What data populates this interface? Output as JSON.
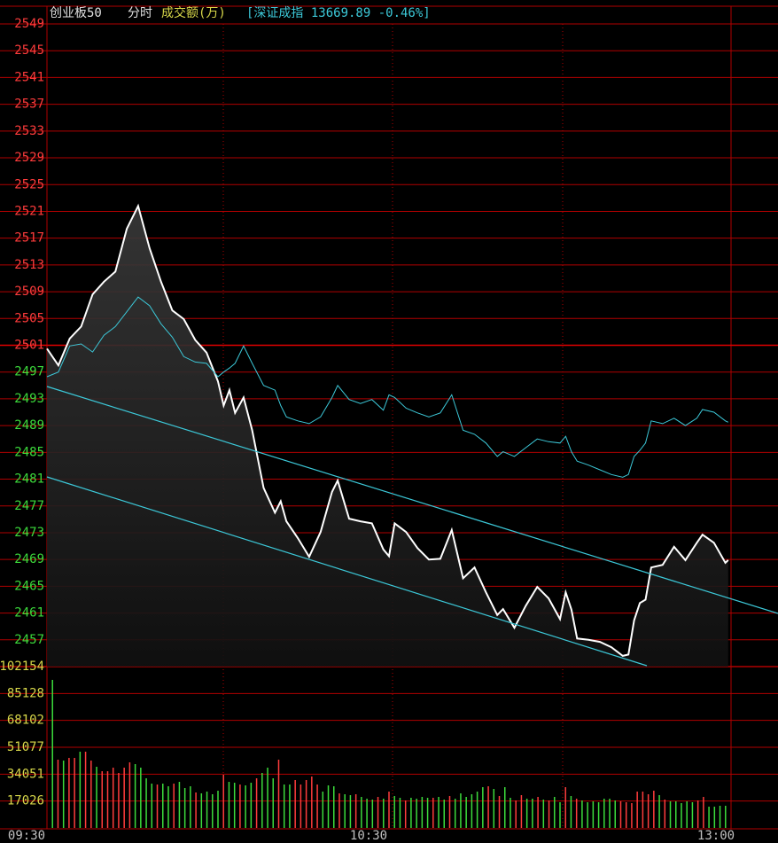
{
  "header": {
    "name": "创业板50",
    "period": "分时",
    "indicator": "成交额(万)",
    "index": "[深证成指 13669.89 -0.46%]"
  },
  "time_axis": [
    "09:30",
    "10:30",
    "13:00"
  ],
  "chart_data": [
    {
      "type": "line",
      "xlim": [
        0,
        240
      ],
      "ylim": [
        2453,
        2549
      ],
      "yticks": [
        2549,
        2545,
        2541,
        2537,
        2533,
        2529,
        2525,
        2521,
        2517,
        2513,
        2509,
        2505,
        2501,
        2497,
        2493,
        2489,
        2485,
        2481,
        2477,
        2473,
        2469,
        2465,
        2461,
        2457
      ],
      "reference": 2501,
      "up_color": "#ff3c3c",
      "down_color": "#3cdc3c",
      "grid": true,
      "x": [
        0,
        4,
        8,
        12,
        16,
        20,
        24,
        28,
        32,
        36,
        40,
        44,
        48,
        52,
        56,
        60,
        62,
        64,
        66,
        69,
        72,
        76,
        80,
        82,
        84,
        88,
        92,
        96,
        100,
        102,
        106,
        110,
        114,
        118,
        120,
        122,
        126,
        130,
        134,
        138,
        142,
        146,
        150,
        154,
        158,
        160,
        164,
        168,
        172,
        176,
        180,
        182,
        184,
        186,
        190,
        194,
        198,
        202,
        204,
        206,
        208,
        210,
        212,
        216,
        220,
        224,
        228,
        230,
        234,
        238,
        239
      ],
      "series": [
        {
          "color": "#ffffff",
          "values": [
            2500.5,
            2498.0,
            2502.0,
            2503.8,
            2508.6,
            2510.5,
            2512.0,
            2518.4,
            2521.8,
            2515.5,
            2510.5,
            2506.2,
            2504.9,
            2501.8,
            2499.9,
            2495.6,
            2492.0,
            2494.3,
            2490.9,
            2493.2,
            2488.3,
            2479.7,
            2476.0,
            2477.7,
            2474.7,
            2472.2,
            2469.4,
            2473.1,
            2479.1,
            2480.8,
            2475.1,
            2474.7,
            2474.4,
            2470.5,
            2469.5,
            2474.4,
            2473.1,
            2470.7,
            2469.0,
            2469.1,
            2473.4,
            2466.2,
            2467.8,
            2464.1,
            2460.7,
            2461.6,
            2458.8,
            2462.1,
            2464.9,
            2463.2,
            2460.1,
            2464.1,
            2461.5,
            2457.2,
            2457.0,
            2456.7,
            2455.9,
            2454.6,
            2454.8,
            2459.9,
            2462.5,
            2463.0,
            2467.8,
            2468.2,
            2470.9,
            2468.9,
            2471.5,
            2472.7,
            2471.5,
            2468.5,
            2468.9
          ]
        },
        {
          "color": "#3cc8d8",
          "values": [
            2496.3,
            2497.0,
            2500.9,
            2501.2,
            2500.0,
            2502.5,
            2503.8,
            2506.0,
            2508.2,
            2506.9,
            2504.2,
            2502.2,
            2499.3,
            2498.5,
            2498.3,
            2496.3,
            2497.0,
            2497.6,
            2498.3,
            2500.9,
            2498.3,
            2495.0,
            2494.3,
            2492.0,
            2490.3,
            2489.7,
            2489.3,
            2490.3,
            2493.2,
            2495.0,
            2492.9,
            2492.3,
            2492.9,
            2491.3,
            2493.6,
            2493.2,
            2491.6,
            2490.9,
            2490.3,
            2490.9,
            2493.6,
            2488.3,
            2487.7,
            2486.4,
            2484.4,
            2485.1,
            2484.4,
            2485.7,
            2487.0,
            2486.6,
            2486.4,
            2487.4,
            2485.1,
            2483.7,
            2483.1,
            2482.4,
            2481.7,
            2481.3,
            2481.7,
            2484.4,
            2485.3,
            2486.4,
            2489.7,
            2489.3,
            2490.1,
            2489.0,
            2490.1,
            2491.4,
            2491.0,
            2489.7,
            2489.5
          ]
        }
      ]
    },
    {
      "type": "bar",
      "ylim": [
        0,
        102154
      ],
      "yticks": [
        102154,
        85128,
        68102,
        51077,
        34051,
        17026
      ],
      "tick_color": "#d8d84a",
      "values": [
        93737,
        43220,
        42659,
        44343,
        44343,
        48272,
        48272,
        42659,
        38730,
        35923,
        35923,
        38168,
        34801,
        38168,
        41536,
        40414,
        38168,
        31433,
        28065,
        27504,
        28065,
        26381,
        28065,
        29188,
        25259,
        26381,
        22452,
        21891,
        23013,
        21329,
        23575,
        33678,
        29188,
        28626,
        27504,
        26942,
        28626,
        31433,
        34801,
        38168,
        31433,
        43220,
        27504,
        27504,
        30310,
        27504,
        30310,
        32555,
        27504,
        23013,
        26942,
        26381,
        21891,
        21329,
        20768,
        21329,
        19646,
        18523,
        17962,
        19646,
        18523,
        23013,
        20207,
        19084,
        17400,
        19084,
        18523,
        19646,
        19084,
        19084,
        19646,
        17962,
        20207,
        18523,
        21891,
        19646,
        21329,
        23013,
        25820,
        26381,
        24697,
        20207,
        25820,
        19084,
        17400,
        20768,
        18523,
        18523,
        19646,
        17962,
        17400,
        19646,
        16277,
        25820,
        20207,
        18523,
        17400,
        16277,
        16839,
        16277,
        18523,
        18523,
        17400,
        16839,
        16277,
        15716,
        23013,
        23013,
        21329,
        23575,
        20768,
        17962,
        16839,
        16839,
        15716,
        16839,
        16277,
        17400,
        19646,
        13471,
        13471,
        14033,
        14033
      ],
      "colors": [
        "#3cdc3c",
        "#ff3c3c",
        "#3cdc3c",
        "#ff3c3c",
        "#ff3c3c",
        "#3cdc3c",
        "#ff3c3c",
        "#ff3c3c",
        "#3cdc3c",
        "#ff3c3c",
        "#ff3c3c",
        "#ff3c3c",
        "#ff3c3c",
        "#ff3c3c",
        "#ff3c3c",
        "#3cdc3c",
        "#3cdc3c",
        "#3cdc3c",
        "#3cdc3c",
        "#ff3c3c",
        "#3cdc3c",
        "#3cdc3c",
        "#ff3c3c",
        "#3cdc3c",
        "#3cdc3c",
        "#3cdc3c",
        "#ff3c3c",
        "#3cdc3c",
        "#3cdc3c",
        "#3cdc3c",
        "#3cdc3c",
        "#ff3c3c",
        "#3cdc3c",
        "#3cdc3c",
        "#ff3c3c",
        "#3cdc3c",
        "#3cdc3c",
        "#ff3c3c",
        "#3cdc3c",
        "#3cdc3c",
        "#3cdc3c",
        "#ff3c3c",
        "#3cdc3c",
        "#3cdc3c",
        "#ff3c3c",
        "#ff3c3c",
        "#ff3c3c",
        "#ff3c3c",
        "#ff3c3c",
        "#3cdc3c",
        "#3cdc3c",
        "#3cdc3c",
        "#ff3c3c",
        "#3cdc3c",
        "#3cdc3c",
        "#ff3c3c",
        "#3cdc3c",
        "#3cdc3c",
        "#3cdc3c",
        "#ff3c3c",
        "#3cdc3c",
        "#ff3c3c",
        "#3cdc3c",
        "#3cdc3c",
        "#ff3c3c",
        "#3cdc3c",
        "#3cdc3c",
        "#3cdc3c",
        "#3cdc3c",
        "#ff3c3c",
        "#3cdc3c",
        "#3cdc3c",
        "#ff3c3c",
        "#3cdc3c",
        "#3cdc3c",
        "#3cdc3c",
        "#3cdc3c",
        "#3cdc3c",
        "#3cdc3c",
        "#ff3c3c",
        "#3cdc3c",
        "#ff3c3c",
        "#3cdc3c",
        "#3cdc3c",
        "#ff3c3c",
        "#ff3c3c",
        "#3cdc3c",
        "#3cdc3c",
        "#ff3c3c",
        "#3cdc3c",
        "#ff3c3c",
        "#3cdc3c",
        "#3cdc3c",
        "#ff3c3c",
        "#3cdc3c",
        "#ff3c3c",
        "#3cdc3c",
        "#3cdc3c",
        "#3cdc3c",
        "#3cdc3c",
        "#3cdc3c",
        "#3cdc3c",
        "#3cdc3c",
        "#ff3c3c",
        "#ff3c3c",
        "#ff3c3c",
        "#ff3c3c",
        "#ff3c3c",
        "#ff3c3c",
        "#ff3c3c",
        "#3cdc3c",
        "#ff3c3c",
        "#3cdc3c",
        "#3cdc3c",
        "#3cdc3c",
        "#3cdc3c",
        "#3cdc3c",
        "#ff3c3c",
        "#ff3c3c",
        "#3cdc3c",
        "#3cdc3c",
        "#3cdc3c",
        "#3cdc3c"
      ]
    }
  ]
}
